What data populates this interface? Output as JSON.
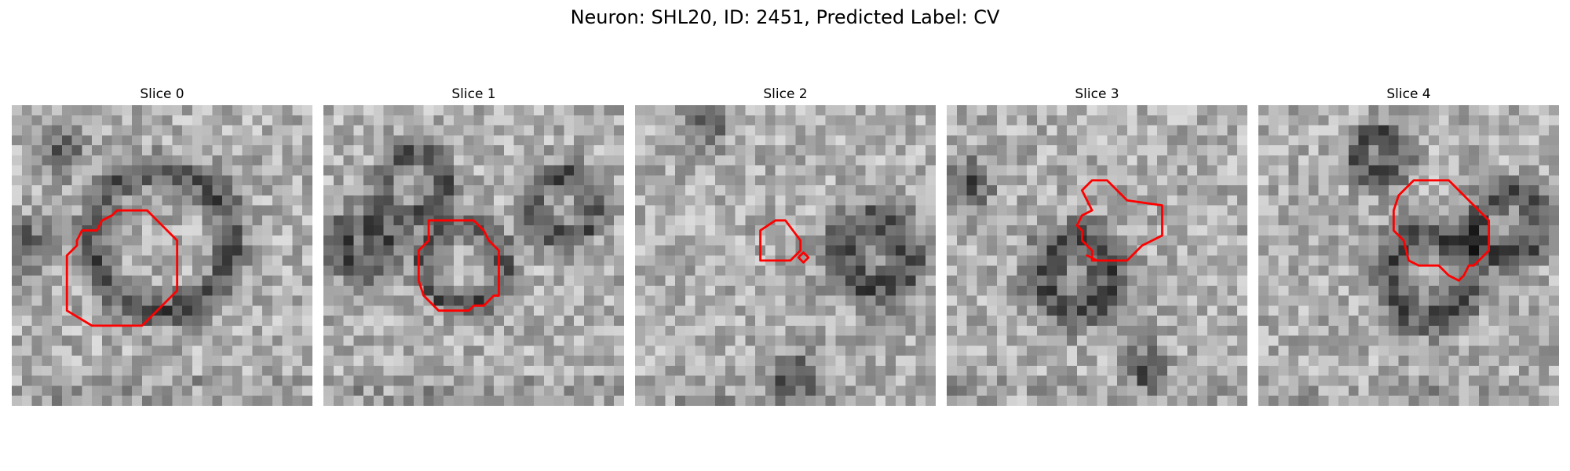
{
  "figure": {
    "title": "Neuron: SHL20, ID: 2451, Predicted Label: CV"
  },
  "contour_color": "#ff0000",
  "grid_size": 30,
  "slices": [
    {
      "label": "Slice 0",
      "contours": [
        [
          [
            10.5,
            10.5
          ],
          [
            11.5,
            10.5
          ],
          [
            12,
            10.5
          ],
          [
            13.5,
            10.5
          ],
          [
            14,
            11
          ],
          [
            14.5,
            11.5
          ],
          [
            16.5,
            13.5
          ],
          [
            16.5,
            18.5
          ],
          [
            14.5,
            20.5
          ],
          [
            14,
            21
          ],
          [
            13.5,
            21.5
          ],
          [
            13,
            22
          ],
          [
            8,
            22
          ],
          [
            5.5,
            20.5
          ],
          [
            5.5,
            15
          ],
          [
            6.5,
            14
          ],
          [
            6.5,
            13.5
          ],
          [
            7,
            12.5
          ],
          [
            8.5,
            12.5
          ],
          [
            9,
            11.5
          ],
          [
            10,
            11
          ]
        ]
      ]
    },
    {
      "label": "Slice 1",
      "contours": [
        [
          [
            10.5,
            11.5
          ],
          [
            15,
            11.5
          ],
          [
            16,
            12.5
          ],
          [
            16.5,
            13.5
          ],
          [
            17.5,
            14.5
          ],
          [
            17.5,
            19
          ],
          [
            17,
            19
          ],
          [
            16,
            20
          ],
          [
            15,
            20
          ],
          [
            14.5,
            20.5
          ],
          [
            11.5,
            20.5
          ],
          [
            10,
            19
          ],
          [
            9.5,
            17.5
          ],
          [
            9.5,
            14.5
          ],
          [
            10.5,
            13.5
          ]
        ]
      ]
    },
    {
      "label": "Slice 2",
      "contours": [
        [
          [
            12.5,
            12.5
          ],
          [
            14,
            11.5
          ],
          [
            15,
            11.5
          ],
          [
            16.5,
            13.5
          ],
          [
            16.5,
            14.5
          ],
          [
            15.5,
            15.5
          ],
          [
            15,
            15.5
          ],
          [
            14.5,
            15.5
          ],
          [
            12.5,
            15.5
          ],
          [
            12.5,
            14
          ]
        ],
        [
          [
            16.8,
            14.7
          ],
          [
            17.3,
            15.2
          ],
          [
            16.8,
            15.7
          ],
          [
            16.3,
            15.2
          ]
        ]
      ]
    },
    {
      "label": "Slice 3",
      "contours": [
        [
          [
            13.5,
            8.5
          ],
          [
            14.5,
            7.5
          ],
          [
            16,
            7.5
          ],
          [
            17,
            8.5
          ],
          [
            18,
            9.5
          ],
          [
            21.5,
            10
          ],
          [
            21.5,
            13
          ],
          [
            19.5,
            14
          ],
          [
            18,
            15.5
          ],
          [
            17,
            15.5
          ],
          [
            15,
            15.5
          ],
          [
            14,
            15
          ],
          [
            15,
            15.5
          ],
          [
            14.5,
            15.5
          ],
          [
            14.5,
            14.5
          ],
          [
            14,
            14
          ],
          [
            13.5,
            13.5
          ],
          [
            13.5,
            12.5
          ],
          [
            13,
            12
          ],
          [
            13.5,
            11
          ],
          [
            14.5,
            10.5
          ]
        ]
      ]
    },
    {
      "label": "Slice 4",
      "contours": [
        [
          [
            14,
            9
          ],
          [
            15.5,
            7.5
          ],
          [
            19,
            7.5
          ],
          [
            20.5,
            9
          ],
          [
            23,
            11.5
          ],
          [
            23,
            14.5
          ],
          [
            21.5,
            16
          ],
          [
            21,
            16
          ],
          [
            20.5,
            17
          ],
          [
            20,
            17.5
          ],
          [
            19,
            17
          ],
          [
            18,
            16
          ],
          [
            16,
            16
          ],
          [
            15,
            15.5
          ],
          [
            14.5,
            13.5
          ],
          [
            13.5,
            12.5
          ],
          [
            13.5,
            10.5
          ]
        ]
      ]
    }
  ]
}
